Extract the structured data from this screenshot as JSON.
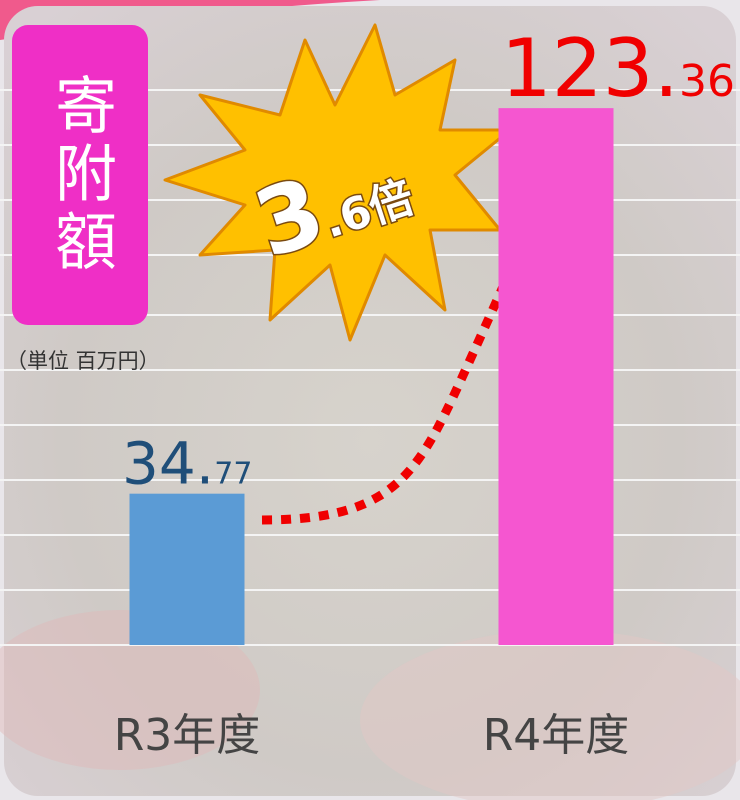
{
  "chart_data": {
    "type": "bar",
    "title": "寄附額",
    "subtitle": "（単位 百万円）",
    "annotation": "3.6倍",
    "categories": [
      "R3年度",
      "R4年度"
    ],
    "values": [
      34.77,
      123.36
    ],
    "value_labels": [
      "34.77",
      "123.36"
    ],
    "colors": [
      "#5b9bd5",
      "#f556d0"
    ],
    "ylim": [
      0,
      125
    ]
  }
}
